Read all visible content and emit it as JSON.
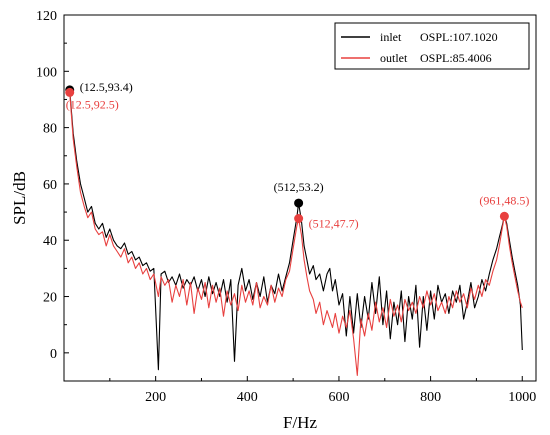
{
  "chart_data": {
    "type": "line",
    "title": "",
    "xlabel": "F/Hz",
    "ylabel": "SPL/dB",
    "xlim": [
      0,
      1030
    ],
    "ylim": [
      -10,
      120
    ],
    "x_ticks": [
      200,
      400,
      600,
      800,
      1000
    ],
    "y_ticks": [
      0,
      20,
      40,
      60,
      80,
      100,
      120
    ],
    "x_tick_labels": [
      "200",
      "400",
      "600",
      "800",
      "1000"
    ],
    "y_tick_labels": [
      "0",
      "20",
      "40",
      "60",
      "80",
      "100",
      "120"
    ],
    "grid": false,
    "legend_position": "top-right",
    "series": [
      {
        "name": "inlet OSPL:107.1020",
        "legend_label": "inlet",
        "legend_value": "OSPL:107.1020",
        "color": "#000000",
        "points": [
          [
            12.5,
            93.4
          ],
          [
            20,
            78
          ],
          [
            28,
            68
          ],
          [
            36,
            60
          ],
          [
            44,
            55
          ],
          [
            52,
            50
          ],
          [
            60,
            52
          ],
          [
            68,
            46
          ],
          [
            76,
            44
          ],
          [
            84,
            46
          ],
          [
            92,
            41
          ],
          [
            100,
            44
          ],
          [
            108,
            40
          ],
          [
            116,
            38
          ],
          [
            124,
            37
          ],
          [
            132,
            39
          ],
          [
            140,
            35
          ],
          [
            148,
            36
          ],
          [
            156,
            33
          ],
          [
            164,
            34
          ],
          [
            172,
            31
          ],
          [
            180,
            32
          ],
          [
            188,
            29
          ],
          [
            196,
            30
          ],
          [
            206,
            -6
          ],
          [
            212,
            28
          ],
          [
            220,
            29
          ],
          [
            228,
            25
          ],
          [
            236,
            27
          ],
          [
            244,
            24
          ],
          [
            252,
            28
          ],
          [
            260,
            23
          ],
          [
            268,
            26
          ],
          [
            276,
            24
          ],
          [
            284,
            27
          ],
          [
            292,
            22
          ],
          [
            300,
            26
          ],
          [
            308,
            20
          ],
          [
            316,
            27
          ],
          [
            324,
            21
          ],
          [
            332,
            25
          ],
          [
            340,
            20
          ],
          [
            348,
            26
          ],
          [
            356,
            18
          ],
          [
            364,
            26
          ],
          [
            372,
            -3
          ],
          [
            380,
            24
          ],
          [
            388,
            30
          ],
          [
            396,
            22
          ],
          [
            404,
            26
          ],
          [
            412,
            19
          ],
          [
            420,
            25
          ],
          [
            428,
            20
          ],
          [
            436,
            27
          ],
          [
            444,
            18
          ],
          [
            452,
            24
          ],
          [
            460,
            21
          ],
          [
            468,
            28
          ],
          [
            476,
            22
          ],
          [
            484,
            27
          ],
          [
            492,
            32
          ],
          [
            500,
            40
          ],
          [
            508,
            48
          ],
          [
            512,
            53.2
          ],
          [
            518,
            47
          ],
          [
            524,
            38
          ],
          [
            530,
            33
          ],
          [
            536,
            28
          ],
          [
            544,
            31
          ],
          [
            550,
            26
          ],
          [
            558,
            28
          ],
          [
            566,
            22
          ],
          [
            574,
            28
          ],
          [
            580,
            30
          ],
          [
            586,
            22
          ],
          [
            592,
            26
          ],
          [
            600,
            17
          ],
          [
            608,
            21
          ],
          [
            616,
            6
          ],
          [
            624,
            20
          ],
          [
            632,
            7
          ],
          [
            640,
            21
          ],
          [
            648,
            9
          ],
          [
            656,
            20
          ],
          [
            664,
            12
          ],
          [
            672,
            25
          ],
          [
            680,
            14
          ],
          [
            688,
            27
          ],
          [
            696,
            10
          ],
          [
            704,
            22
          ],
          [
            712,
            5
          ],
          [
            720,
            18
          ],
          [
            728,
            10
          ],
          [
            736,
            22
          ],
          [
            744,
            4
          ],
          [
            752,
            20
          ],
          [
            760,
            12
          ],
          [
            768,
            24
          ],
          [
            776,
            2
          ],
          [
            784,
            20
          ],
          [
            792,
            8
          ],
          [
            800,
            22
          ],
          [
            808,
            12
          ],
          [
            816,
            24
          ],
          [
            824,
            18
          ],
          [
            832,
            21
          ],
          [
            840,
            14
          ],
          [
            848,
            22
          ],
          [
            856,
            18
          ],
          [
            864,
            24
          ],
          [
            872,
            12
          ],
          [
            880,
            18
          ],
          [
            888,
            25
          ],
          [
            896,
            16
          ],
          [
            904,
            20
          ],
          [
            912,
            26
          ],
          [
            920,
            22
          ],
          [
            928,
            28
          ],
          [
            936,
            33
          ],
          [
            944,
            37
          ],
          [
            950,
            41
          ],
          [
            956,
            45
          ],
          [
            961,
            48.5
          ],
          [
            966,
            46
          ],
          [
            972,
            40
          ],
          [
            978,
            34
          ],
          [
            984,
            29
          ],
          [
            990,
            24
          ],
          [
            996,
            17
          ],
          [
            1000,
            1
          ]
        ]
      },
      {
        "name": "outlet OSPL:85.4006",
        "legend_label": "outlet",
        "legend_value": "OSPL:85.4006",
        "color": "#e8403f",
        "points": [
          [
            12.5,
            92.5
          ],
          [
            20,
            76
          ],
          [
            28,
            66
          ],
          [
            36,
            57
          ],
          [
            44,
            52
          ],
          [
            52,
            48
          ],
          [
            60,
            50
          ],
          [
            68,
            44
          ],
          [
            76,
            42
          ],
          [
            84,
            43
          ],
          [
            92,
            38
          ],
          [
            100,
            42
          ],
          [
            108,
            38
          ],
          [
            116,
            36
          ],
          [
            124,
            34
          ],
          [
            132,
            37
          ],
          [
            140,
            32
          ],
          [
            148,
            34
          ],
          [
            156,
            30
          ],
          [
            164,
            32
          ],
          [
            172,
            28
          ],
          [
            180,
            30
          ],
          [
            188,
            26
          ],
          [
            196,
            28
          ],
          [
            206,
            20
          ],
          [
            212,
            27
          ],
          [
            220,
            24
          ],
          [
            228,
            26
          ],
          [
            236,
            18
          ],
          [
            244,
            24
          ],
          [
            252,
            20
          ],
          [
            260,
            26
          ],
          [
            268,
            17
          ],
          [
            276,
            25
          ],
          [
            284,
            14
          ],
          [
            292,
            23
          ],
          [
            300,
            19
          ],
          [
            308,
            25
          ],
          [
            316,
            16
          ],
          [
            324,
            24
          ],
          [
            332,
            18
          ],
          [
            340,
            23
          ],
          [
            348,
            13
          ],
          [
            356,
            22
          ],
          [
            364,
            17
          ],
          [
            372,
            21
          ],
          [
            380,
            15
          ],
          [
            388,
            24
          ],
          [
            396,
            18
          ],
          [
            404,
            22
          ],
          [
            412,
            17
          ],
          [
            420,
            25
          ],
          [
            428,
            16
          ],
          [
            436,
            20
          ],
          [
            444,
            17
          ],
          [
            452,
            24
          ],
          [
            460,
            18
          ],
          [
            468,
            23
          ],
          [
            476,
            20
          ],
          [
            484,
            26
          ],
          [
            492,
            29
          ],
          [
            500,
            37
          ],
          [
            508,
            45
          ],
          [
            512,
            47.7
          ],
          [
            518,
            42
          ],
          [
            524,
            33
          ],
          [
            530,
            27
          ],
          [
            536,
            22
          ],
          [
            544,
            19
          ],
          [
            550,
            14
          ],
          [
            558,
            18
          ],
          [
            566,
            10
          ],
          [
            574,
            15
          ],
          [
            580,
            12
          ],
          [
            586,
            9
          ],
          [
            592,
            14
          ],
          [
            600,
            7
          ],
          [
            608,
            13
          ],
          [
            616,
            9
          ],
          [
            624,
            15
          ],
          [
            632,
            5
          ],
          [
            640,
            -8
          ],
          [
            648,
            12
          ],
          [
            656,
            6
          ],
          [
            664,
            14
          ],
          [
            672,
            8
          ],
          [
            680,
            18
          ],
          [
            688,
            11
          ],
          [
            696,
            16
          ],
          [
            704,
            9
          ],
          [
            712,
            19
          ],
          [
            720,
            13
          ],
          [
            728,
            17
          ],
          [
            736,
            11
          ],
          [
            744,
            19
          ],
          [
            752,
            15
          ],
          [
            760,
            18
          ],
          [
            768,
            14
          ],
          [
            776,
            20
          ],
          [
            784,
            16
          ],
          [
            792,
            22
          ],
          [
            800,
            17
          ],
          [
            808,
            21
          ],
          [
            816,
            15
          ],
          [
            824,
            18
          ],
          [
            832,
            14
          ],
          [
            840,
            20
          ],
          [
            848,
            16
          ],
          [
            856,
            22
          ],
          [
            864,
            18
          ],
          [
            872,
            21
          ],
          [
            880,
            16
          ],
          [
            888,
            23
          ],
          [
            896,
            19
          ],
          [
            904,
            24
          ],
          [
            912,
            20
          ],
          [
            920,
            26
          ],
          [
            928,
            24
          ],
          [
            936,
            29
          ],
          [
            944,
            33
          ],
          [
            950,
            38
          ],
          [
            956,
            44
          ],
          [
            961,
            48.5
          ],
          [
            966,
            45
          ],
          [
            972,
            38
          ],
          [
            978,
            32
          ],
          [
            984,
            27
          ],
          [
            990,
            22
          ],
          [
            996,
            18
          ],
          [
            1000,
            16
          ]
        ]
      }
    ],
    "annotations": [
      {
        "text": "(12.5,93.4)",
        "x": 12.5,
        "y": 93.4,
        "series": 0,
        "side": "right-up",
        "marker": true
      },
      {
        "text": "(12.5,92.5)",
        "x": 12.5,
        "y": 92.5,
        "series": 1,
        "side": "right-down",
        "marker": true
      },
      {
        "text": "(512,53.2)",
        "x": 512,
        "y": 53.2,
        "series": 0,
        "side": "above",
        "marker": true
      },
      {
        "text": "(512,47.7)",
        "x": 512,
        "y": 47.7,
        "series": 1,
        "side": "right",
        "marker": true
      },
      {
        "text": "(961,48.5)",
        "x": 961,
        "y": 48.5,
        "series": 1,
        "side": "above",
        "marker": true
      }
    ]
  }
}
